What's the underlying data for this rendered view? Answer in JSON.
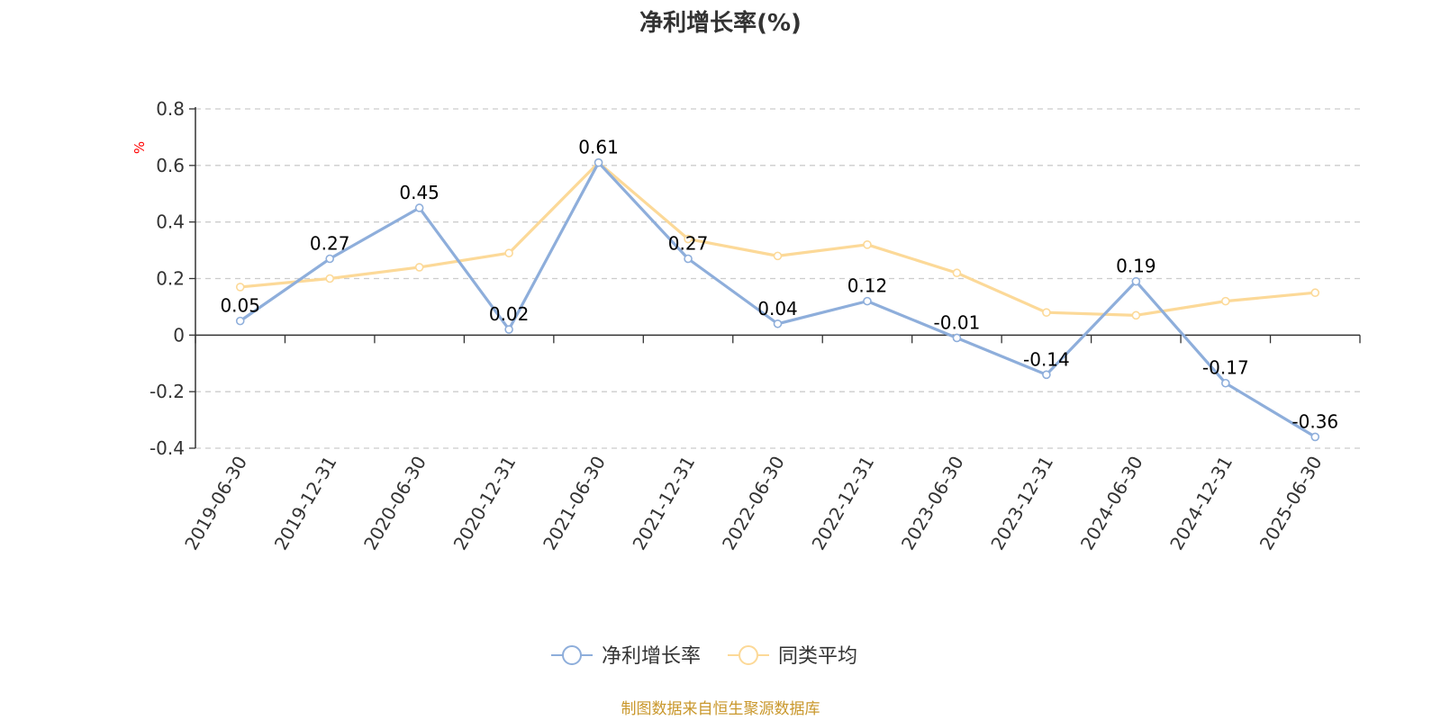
{
  "chart_data": {
    "type": "line",
    "title": "净利增长率(%)",
    "ylabel": "%",
    "categories": [
      "2019-06-30",
      "2019-12-31",
      "2020-06-30",
      "2020-12-31",
      "2021-06-30",
      "2021-12-31",
      "2022-06-30",
      "2022-12-31",
      "2023-06-30",
      "2023-12-31",
      "2024-06-30",
      "2024-12-31",
      "2025-06-30"
    ],
    "series": [
      {
        "name": "净利增长率",
        "color": "#8eaedb",
        "show_labels": true,
        "values": [
          0.05,
          0.27,
          0.45,
          0.02,
          0.61,
          0.27,
          0.04,
          0.12,
          -0.01,
          -0.14,
          0.19,
          -0.17,
          -0.36
        ]
      },
      {
        "name": "同类平均",
        "color": "#fcd998",
        "show_labels": false,
        "values": [
          0.17,
          0.2,
          0.24,
          0.29,
          0.61,
          0.34,
          0.28,
          0.32,
          0.22,
          0.08,
          0.07,
          0.12,
          0.15
        ]
      }
    ],
    "ylim": [
      -0.4,
      0.8
    ],
    "yticks": [
      "0.8",
      "0.6",
      "0.4",
      "0.2",
      "0",
      "-0.2",
      "-0.4"
    ],
    "grid": true,
    "legend": "bottom-center",
    "source": "制图数据来自恒生聚源数据库",
    "source_color": "#c9972b",
    "unit_color": "#ff0000"
  }
}
